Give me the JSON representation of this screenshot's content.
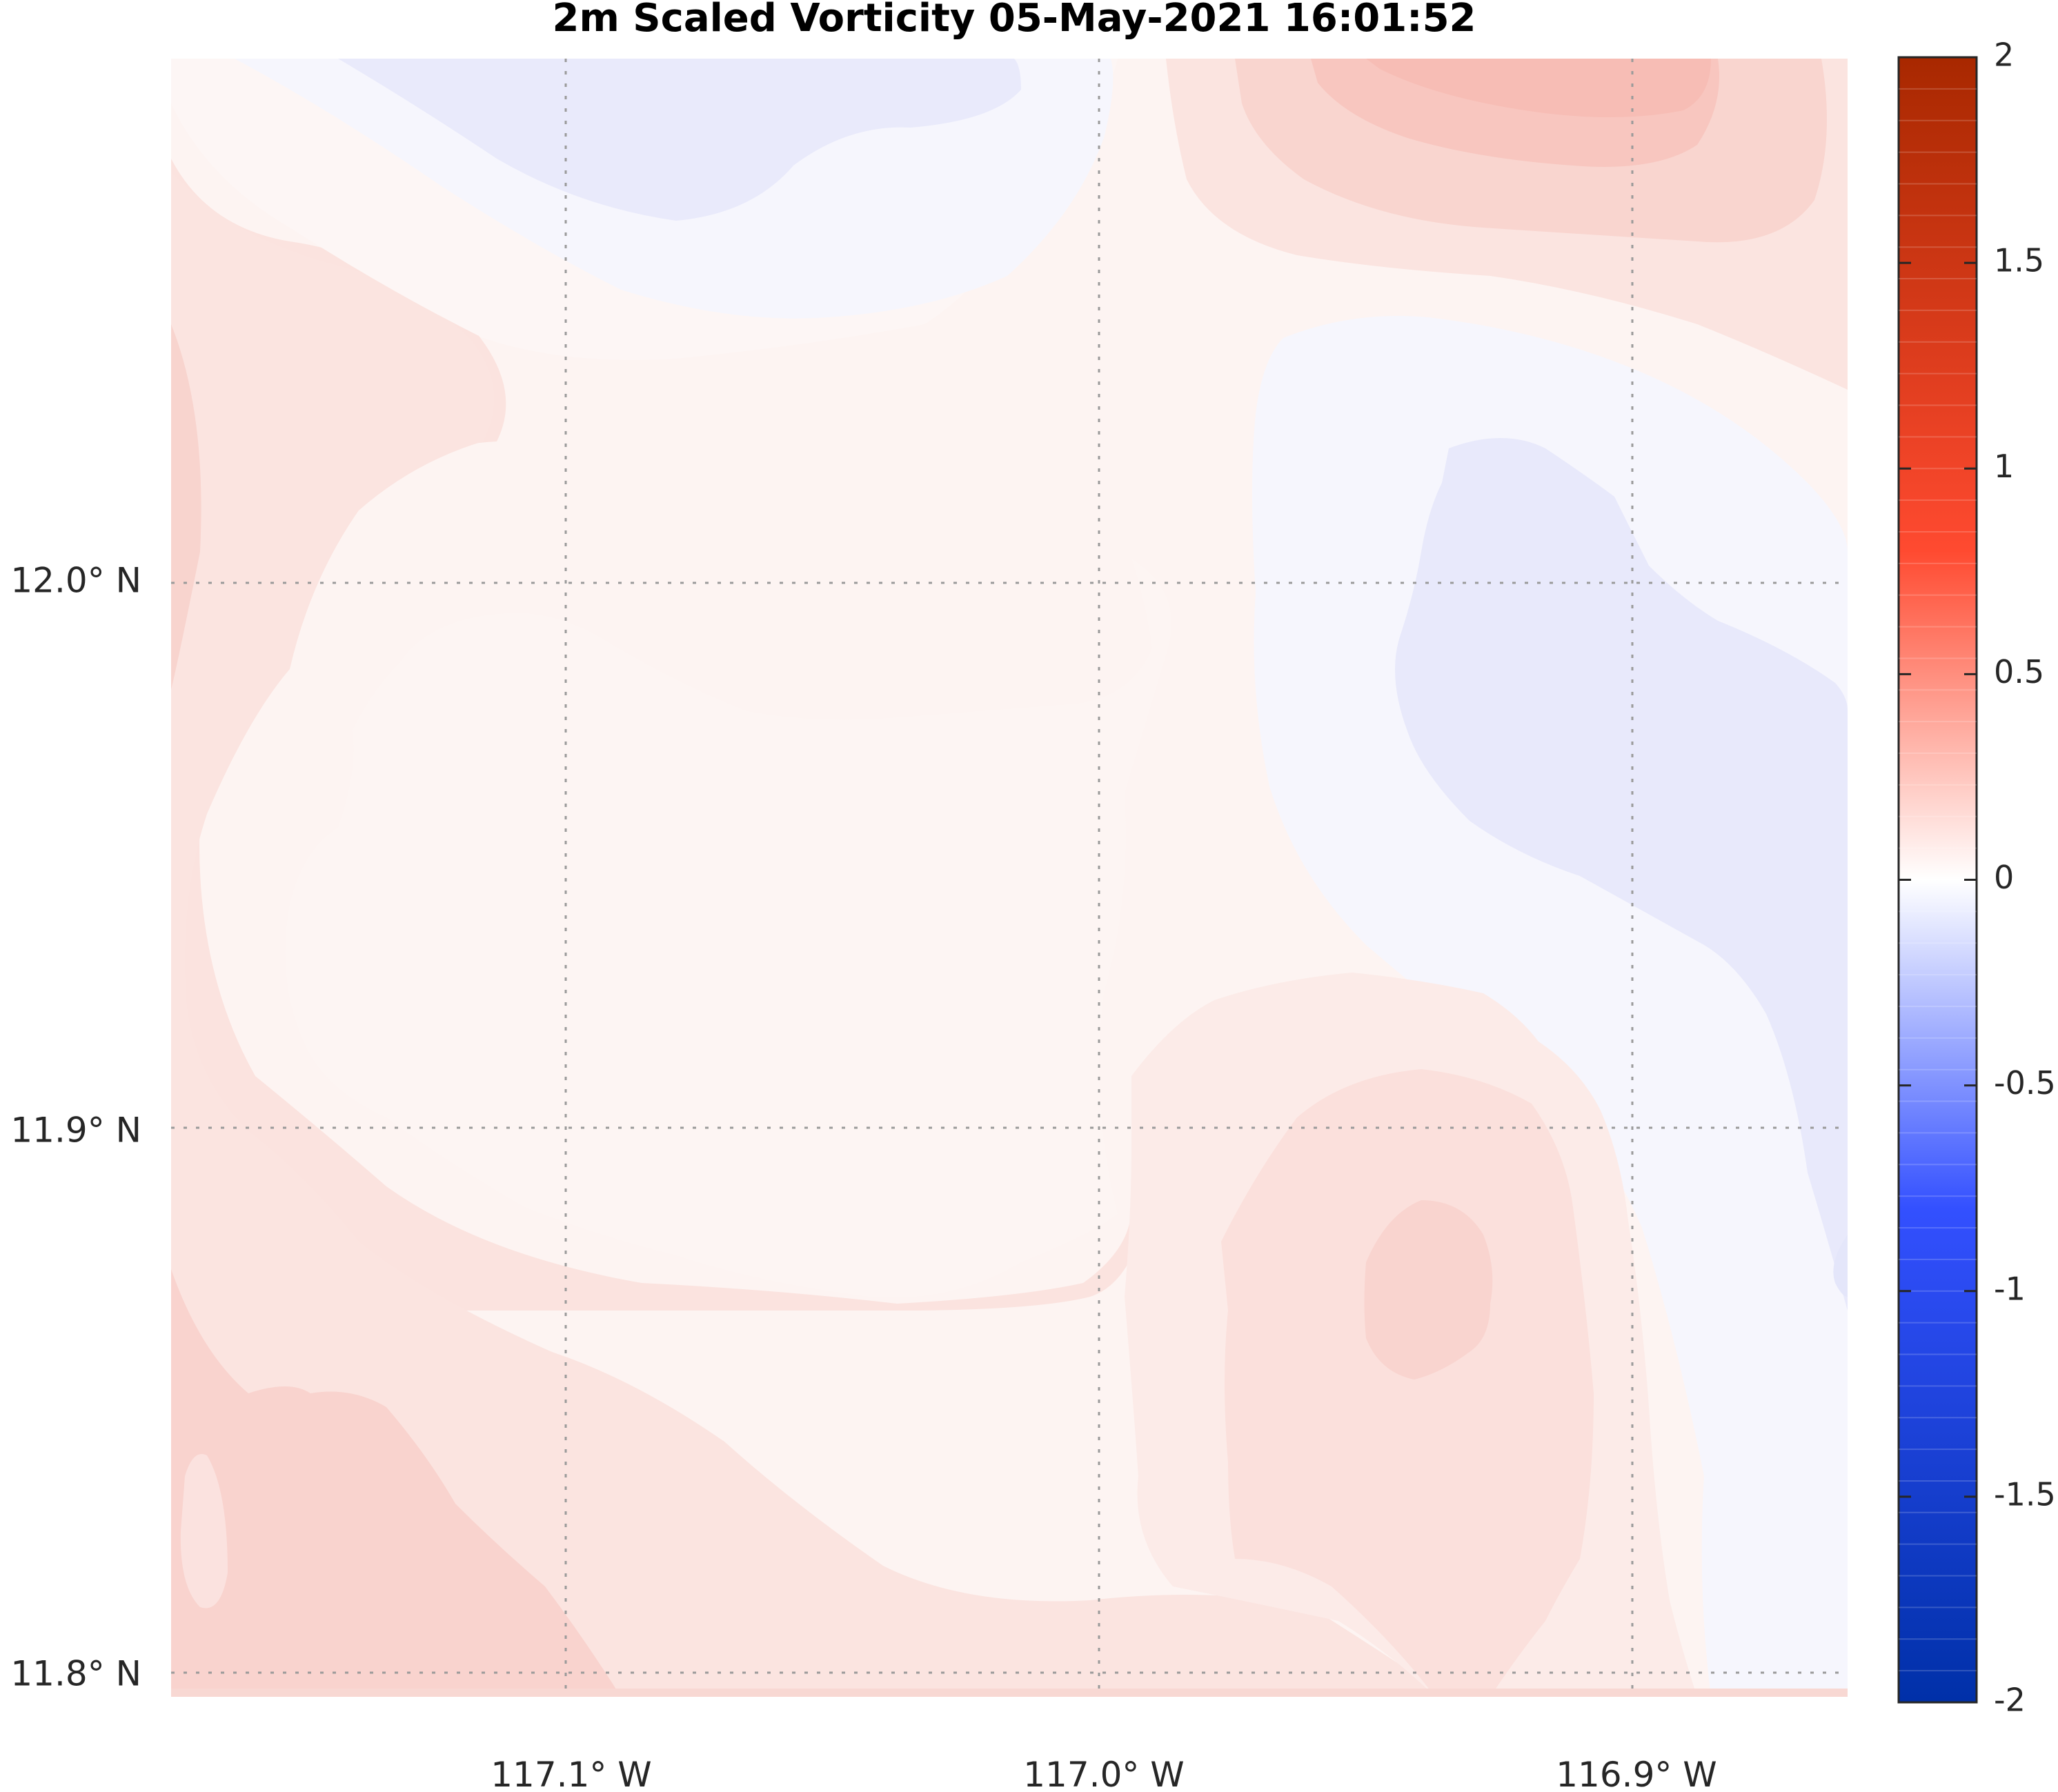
{
  "figure": {
    "title": "2m Scaled Vorticity  05-May-2021 16:01:52",
    "lat_labels": [
      "12.0° N",
      "11.9° N",
      "11.8° N"
    ],
    "lon_labels": [
      "117.1° W",
      "117.0° W",
      "116.9° W"
    ]
  },
  "colorbar": {
    "tick_labels": [
      "2",
      "1.5",
      "1",
      "0.5",
      "0",
      "-0.5",
      "-1",
      "-1.5",
      "-2"
    ],
    "min": -2,
    "max": 2,
    "levels": 52,
    "colors": {
      "negative_end": "#0030a8",
      "mid_blue": "#3350ff",
      "zero": "#ffffff",
      "mid_red": "#ff4a30",
      "positive_end": "#a82800"
    }
  },
  "chart_data": {
    "type": "heatmap",
    "title": "2m Scaled Vorticity  05-May-2021 16:01:52",
    "xlabel": "",
    "ylabel": "",
    "x_ticks": [
      "117.1° W",
      "117.0° W",
      "116.9° W"
    ],
    "y_ticks": [
      "12.0° N",
      "11.9° N",
      "11.8° N"
    ],
    "lon_range": [
      -117.174,
      -116.86
    ],
    "lat_range": [
      11.796,
      12.097
    ],
    "colorbar_range": [
      -2,
      2
    ],
    "grid": true,
    "field_features": [
      {
        "region": "northeast corner",
        "approx_value": 0.35
      },
      {
        "region": "north-central",
        "approx_value": -0.05
      },
      {
        "region": "east-central",
        "approx_value": -0.1
      },
      {
        "region": "center",
        "approx_value": 0.03
      },
      {
        "region": "southeast-center",
        "approx_value": 0.2
      },
      {
        "region": "southwest corner",
        "approx_value": 0.25
      },
      {
        "region": "west edge",
        "approx_value": 0.18
      }
    ]
  }
}
